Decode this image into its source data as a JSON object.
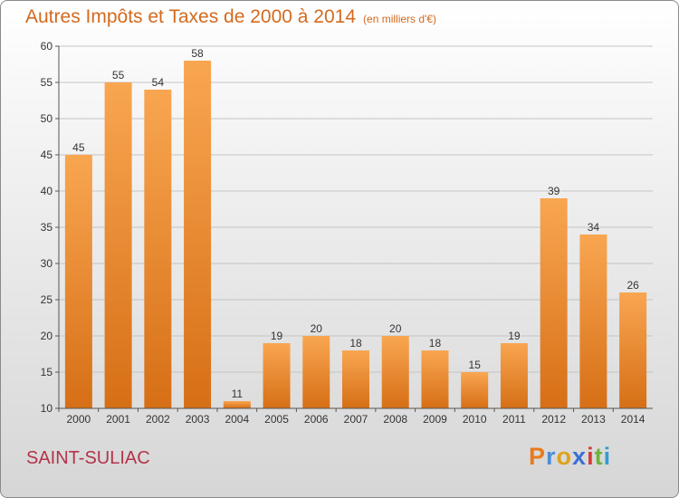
{
  "title": "Autres Impôts et Taxes de 2000 à 2014",
  "subtitle": "(en milliers d'€)",
  "city": "SAINT-SULIAC",
  "logo": {
    "letters": [
      "P",
      "r",
      "o",
      "x",
      "i",
      "t",
      "i"
    ],
    "colors": [
      "#e87b1e",
      "#4a8fd8",
      "#e0a21c",
      "#3b6fd4",
      "#d63a3a",
      "#6cb43a",
      "#2f9fd0"
    ]
  },
  "chart_data": {
    "type": "bar",
    "title": "Autres Impôts et Taxes de 2000 à 2014",
    "subtitle": "(en milliers d'€)",
    "categories": [
      "2000",
      "2001",
      "2002",
      "2003",
      "2004",
      "2005",
      "2006",
      "2007",
      "2008",
      "2009",
      "2010",
      "2011",
      "2012",
      "2013",
      "2014"
    ],
    "values": [
      45,
      55,
      54,
      58,
      11,
      19,
      20,
      18,
      20,
      18,
      15,
      19,
      39,
      34,
      26
    ],
    "ylim": [
      10,
      60
    ],
    "yticks": [
      10,
      15,
      20,
      25,
      30,
      35,
      40,
      45,
      50,
      55,
      60
    ],
    "grid": true,
    "bar_color": "#f0902e"
  }
}
